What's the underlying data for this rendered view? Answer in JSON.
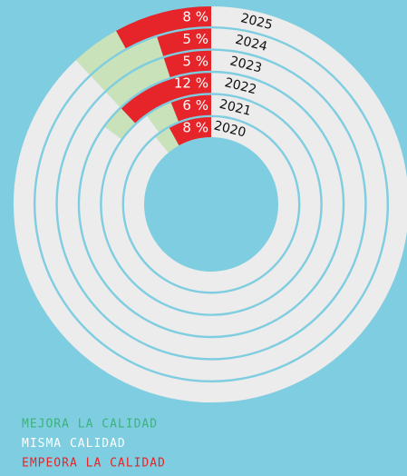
{
  "chart_data": {
    "type": "radial_bar",
    "categories": [
      "2020",
      "2021",
      "2022",
      "2023",
      "2024",
      "2025"
    ],
    "series": [
      {
        "name": "MEJORA LA CALIDAD",
        "color": "#c9e2b9",
        "values": [
          3,
          4,
          3,
          7,
          7,
          4
        ]
      },
      {
        "name": "MISMA CALIDAD",
        "color": "#ececec",
        "values": [
          89,
          90,
          85,
          88,
          88,
          88
        ]
      },
      {
        "name": "EMPEORA LA CALIDAD",
        "color": "#e6252a",
        "values": [
          8,
          6,
          12,
          5,
          5,
          8
        ],
        "value_labels": [
          "8 %",
          "6 %",
          "12 %",
          "5 %",
          "5 %",
          "8 %"
        ]
      }
    ]
  }
}
